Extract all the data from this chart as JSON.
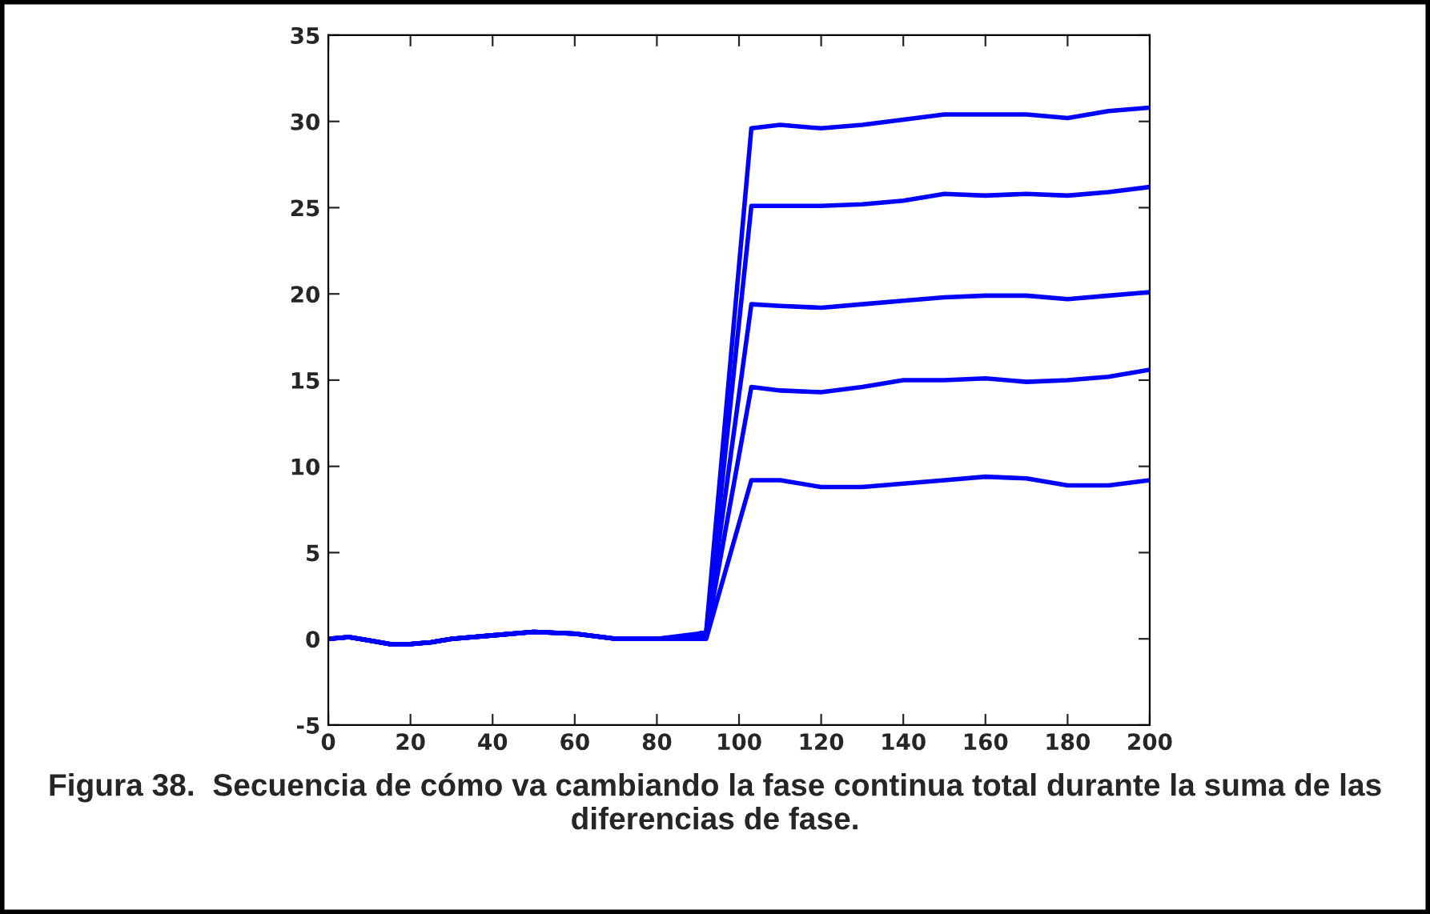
{
  "chart_data": {
    "type": "line",
    "xlim": [
      0,
      200
    ],
    "ylim": [
      -5,
      35
    ],
    "xticks": [
      0,
      20,
      40,
      60,
      80,
      100,
      120,
      140,
      160,
      180,
      200
    ],
    "yticks": [
      -5,
      0,
      5,
      10,
      15,
      20,
      25,
      30,
      35
    ],
    "grid": false,
    "legend": false,
    "marker": "none",
    "line_style": "solid",
    "annotations": [
      "Figura 38.  Secuencia de cómo va cambiando la fase continua total durante la suma de las diferencias de fase."
    ],
    "series": [
      {
        "color": "#0000ff",
        "x": [
          0,
          5,
          10,
          15,
          20,
          25,
          30,
          40,
          50,
          60,
          70,
          80,
          90,
          92,
          103,
          110,
          120,
          130,
          140,
          150,
          160,
          170,
          180,
          190,
          200
        ],
        "values": [
          0,
          0.1,
          -0.1,
          -0.3,
          -0.3,
          -0.2,
          0,
          0.2,
          0.4,
          0.3,
          0,
          0,
          0.3,
          0.4,
          29.6,
          29.8,
          29.6,
          29.8,
          30.1,
          30.4,
          30.4,
          30.4,
          30.2,
          30.6,
          30.8
        ]
      },
      {
        "color": "#0000ff",
        "x": [
          0,
          5,
          10,
          15,
          20,
          25,
          30,
          40,
          50,
          60,
          70,
          80,
          90,
          92,
          103,
          110,
          120,
          130,
          140,
          150,
          160,
          170,
          180,
          190,
          200
        ],
        "values": [
          0,
          0.1,
          -0.1,
          -0.3,
          -0.3,
          -0.2,
          0,
          0.2,
          0.4,
          0.3,
          0,
          0,
          0.2,
          0.3,
          25.1,
          25.1,
          25.1,
          25.2,
          25.4,
          25.8,
          25.7,
          25.8,
          25.7,
          25.9,
          26.2
        ]
      },
      {
        "color": "#0000ff",
        "x": [
          0,
          5,
          10,
          15,
          20,
          25,
          30,
          40,
          50,
          60,
          70,
          80,
          90,
          92,
          103,
          110,
          120,
          130,
          140,
          150,
          160,
          170,
          180,
          190,
          200
        ],
        "values": [
          0,
          0.1,
          -0.1,
          -0.3,
          -0.3,
          -0.2,
          0,
          0.2,
          0.4,
          0.3,
          0,
          0,
          0.1,
          0.2,
          19.4,
          19.3,
          19.2,
          19.4,
          19.6,
          19.8,
          19.9,
          19.9,
          19.7,
          19.9,
          20.1
        ]
      },
      {
        "color": "#0000ff",
        "x": [
          0,
          5,
          10,
          15,
          20,
          25,
          30,
          40,
          50,
          60,
          70,
          80,
          90,
          92,
          103,
          110,
          120,
          130,
          140,
          150,
          160,
          170,
          180,
          190,
          200
        ],
        "values": [
          0,
          0.1,
          -0.1,
          -0.3,
          -0.3,
          -0.2,
          0,
          0.2,
          0.4,
          0.3,
          0,
          0,
          0.1,
          0.1,
          14.6,
          14.4,
          14.3,
          14.6,
          15.0,
          15.0,
          15.1,
          14.9,
          15.0,
          15.2,
          15.6
        ]
      },
      {
        "color": "#0000ff",
        "x": [
          0,
          5,
          10,
          15,
          20,
          25,
          30,
          40,
          50,
          60,
          70,
          80,
          90,
          92,
          103,
          110,
          120,
          130,
          140,
          150,
          160,
          170,
          180,
          190,
          200
        ],
        "values": [
          0,
          0.1,
          -0.1,
          -0.3,
          -0.3,
          -0.2,
          0,
          0.2,
          0.4,
          0.3,
          0,
          0,
          0,
          0,
          9.2,
          9.2,
          8.8,
          8.8,
          9.0,
          9.2,
          9.4,
          9.3,
          8.9,
          8.9,
          9.2
        ]
      }
    ]
  }
}
